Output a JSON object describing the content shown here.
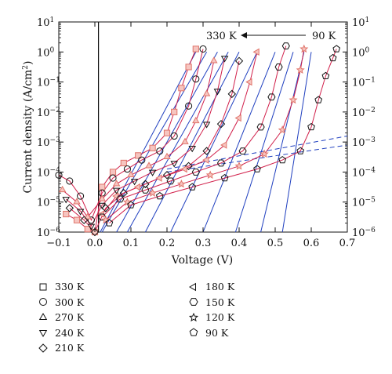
{
  "chart_data": {
    "type": "scatter",
    "title": "",
    "xlabel": "Voltage (V)",
    "ylabel": "Current density (A/cm",
    "ylabel_sup": "2",
    "ylabel_close": ")",
    "xlim": [
      -0.1,
      0.7
    ],
    "ylim_log10": [
      -6,
      1
    ],
    "y_scale": "log",
    "x_ticks": [
      "−0.1",
      "0.0",
      "0.1",
      "0.2",
      "0.3",
      "0.4",
      "0.5",
      "0.6",
      "0.7"
    ],
    "x_tick_values": [
      -0.1,
      0.0,
      0.1,
      0.2,
      0.3,
      0.4,
      0.5,
      0.6,
      0.7
    ],
    "y_ticks": [
      {
        "base": "10",
        "exp": "1",
        "value": 1
      },
      {
        "base": "10",
        "exp": "0",
        "value": 0
      },
      {
        "base": "10",
        "exp": "−1",
        "value": -1
      },
      {
        "base": "10",
        "exp": "−2",
        "value": -2
      },
      {
        "base": "10",
        "exp": "−3",
        "value": -3
      },
      {
        "base": "10",
        "exp": "−4",
        "value": -4
      },
      {
        "base": "10",
        "exp": "−5",
        "value": -5
      },
      {
        "base": "10",
        "exp": "−6",
        "value": -6
      }
    ],
    "annotation": {
      "left": "330 K",
      "right": "90 K"
    },
    "series": [
      {
        "name": "330 K",
        "marker": "square",
        "color": "#e0746a",
        "x": [
          -0.08,
          -0.05,
          -0.02,
          0.0,
          0.02,
          0.05,
          0.08,
          0.12,
          0.16,
          0.2,
          0.22,
          0.24,
          0.26,
          0.28
        ],
        "y": [
          -5.4,
          -5.6,
          -5.9,
          -6.0,
          -4.5,
          -4.0,
          -3.7,
          -3.45,
          -3.2,
          -2.7,
          -2.0,
          -1.2,
          -0.5,
          0.1
        ]
      },
      {
        "name": "300 K",
        "marker": "circle",
        "color": "#111111",
        "x": [
          -0.1,
          -0.07,
          -0.04,
          -0.01,
          0.02,
          0.05,
          0.09,
          0.13,
          0.18,
          0.22,
          0.26,
          0.28,
          0.3
        ],
        "y": [
          -4.1,
          -4.3,
          -4.8,
          -5.6,
          -4.7,
          -4.2,
          -3.9,
          -3.6,
          -3.3,
          -2.8,
          -1.8,
          -0.9,
          0.1
        ]
      },
      {
        "name": "270 K",
        "marker": "triangle-up",
        "color": "#e0746a",
        "x": [
          -0.09,
          -0.05,
          -0.02,
          0.02,
          0.06,
          0.1,
          0.15,
          0.2,
          0.25,
          0.28,
          0.31,
          0.33
        ],
        "y": [
          -4.6,
          -5.0,
          -5.5,
          -4.9,
          -4.4,
          -4.1,
          -3.8,
          -3.5,
          -3.0,
          -2.3,
          -1.4,
          -0.3
        ]
      },
      {
        "name": "240 K",
        "marker": "triangle-down",
        "color": "#111111",
        "x": [
          -0.08,
          -0.04,
          -0.01,
          0.02,
          0.06,
          0.11,
          0.16,
          0.22,
          0.27,
          0.31,
          0.34,
          0.36
        ],
        "y": [
          -4.9,
          -5.3,
          -5.8,
          -5.1,
          -4.6,
          -4.3,
          -4.0,
          -3.7,
          -3.2,
          -2.4,
          -1.3,
          -0.2
        ]
      },
      {
        "name": "210 K",
        "marker": "diamond",
        "color": "#111111",
        "x": [
          -0.07,
          -0.03,
          0.0,
          0.03,
          0.08,
          0.14,
          0.2,
          0.26,
          0.31,
          0.35,
          0.38,
          0.4
        ],
        "y": [
          -5.2,
          -5.6,
          -6.0,
          -5.2,
          -4.7,
          -4.4,
          -4.1,
          -3.8,
          -3.3,
          -2.4,
          -1.4,
          -0.3
        ]
      },
      {
        "name": "180 K",
        "marker": "triangle-left",
        "color": "#e0746a",
        "x": [
          0.02,
          0.06,
          0.12,
          0.18,
          0.25,
          0.31,
          0.36,
          0.4,
          0.43,
          0.45
        ],
        "y": [
          -5.4,
          -4.8,
          -4.5,
          -4.2,
          -3.9,
          -3.6,
          -3.1,
          -2.2,
          -1.0,
          0.0
        ]
      },
      {
        "name": "150 K",
        "marker": "hexagon",
        "color": "#111111",
        "x": [
          0.02,
          0.07,
          0.14,
          0.21,
          0.28,
          0.35,
          0.41,
          0.46,
          0.49,
          0.51,
          0.53
        ],
        "y": [
          -5.5,
          -4.9,
          -4.6,
          -4.3,
          -4.0,
          -3.7,
          -3.3,
          -2.5,
          -1.5,
          -0.5,
          0.2
        ]
      },
      {
        "name": "120 K",
        "marker": "star",
        "color": "#e0746a",
        "x": [
          0.03,
          0.09,
          0.16,
          0.24,
          0.32,
          0.4,
          0.47,
          0.52,
          0.55,
          0.57,
          0.58
        ],
        "y": [
          -5.6,
          -5.0,
          -4.7,
          -4.4,
          -4.1,
          -3.8,
          -3.4,
          -2.6,
          -1.6,
          -0.6,
          0.1
        ]
      },
      {
        "name": "90 K",
        "marker": "pentagon",
        "color": "#111111",
        "x": [
          0.04,
          0.1,
          0.18,
          0.27,
          0.36,
          0.45,
          0.52,
          0.57,
          0.6,
          0.62,
          0.64,
          0.66,
          0.67
        ],
        "y": [
          -5.7,
          -5.1,
          -4.8,
          -4.5,
          -4.2,
          -3.9,
          -3.6,
          -3.3,
          -2.5,
          -1.6,
          -0.8,
          -0.2,
          0.1
        ]
      }
    ],
    "fit_lines": [
      {
        "x": [
          0.015,
          0.28
        ],
        "y": [
          -6.0,
          0.0
        ]
      },
      {
        "x": [
          0.02,
          0.31
        ],
        "y": [
          -6.0,
          0.0
        ]
      },
      {
        "x": [
          0.06,
          0.34
        ],
        "y": [
          -6.0,
          0.0
        ]
      },
      {
        "x": [
          0.09,
          0.37
        ],
        "y": [
          -6.0,
          0.0
        ]
      },
      {
        "x": [
          0.14,
          0.4
        ],
        "y": [
          -6.0,
          0.0
        ]
      },
      {
        "x": [
          0.21,
          0.45
        ],
        "y": [
          -6.0,
          0.0
        ]
      },
      {
        "x": [
          0.3,
          0.5
        ],
        "y": [
          -6.0,
          0.0
        ]
      },
      {
        "x": [
          0.39,
          0.55
        ],
        "y": [
          -6.0,
          0.0
        ]
      },
      {
        "x": [
          0.46,
          0.58
        ],
        "y": [
          -6.0,
          0.0
        ]
      },
      {
        "x": [
          0.52,
          0.6
        ],
        "y": [
          -6.0,
          0.0
        ]
      }
    ],
    "dashed_lines": [
      {
        "x": [
          0.2,
          0.7
        ],
        "y": [
          -3.9,
          -2.8
        ]
      },
      {
        "x": [
          0.2,
          0.7
        ],
        "y": [
          -4.0,
          -3.1
        ]
      }
    ],
    "colors": {
      "fit": "#1f3fbf",
      "red_curve": "#d11f4a",
      "markers_red": "#e0746a",
      "markers_black": "#111111"
    }
  },
  "legend_col1": [
    {
      "label": "330 K",
      "marker": "square"
    },
    {
      "label": "300 K",
      "marker": "circle"
    },
    {
      "label": "270 K",
      "marker": "triangle-up"
    },
    {
      "label": "240 K",
      "marker": "triangle-down"
    },
    {
      "label": "210 K",
      "marker": "diamond"
    }
  ],
  "legend_col2": [
    {
      "label": "180 K",
      "marker": "triangle-left"
    },
    {
      "label": "150 K",
      "marker": "hexagon"
    },
    {
      "label": "120 K",
      "marker": "star"
    },
    {
      "label": "90 K",
      "marker": "pentagon"
    }
  ]
}
